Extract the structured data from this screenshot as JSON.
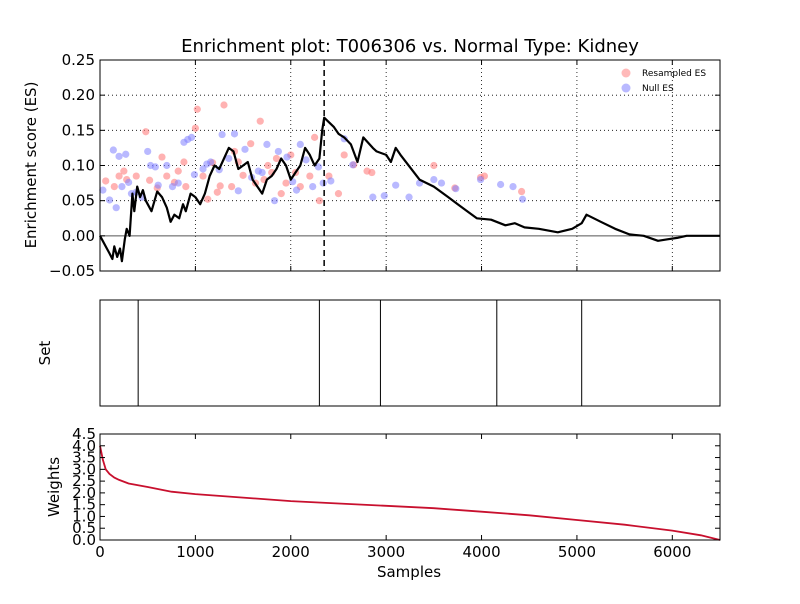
{
  "chart_data": [
    {
      "type": "scatter",
      "title": "Enrichment plot: T006306 vs. Normal Type: Kidney",
      "xlabel": "",
      "ylabel": "Enrichment score (ES)",
      "xlim": [
        0,
        6500
      ],
      "ylim": [
        -0.05,
        0.25
      ],
      "yticks": [
        "0.25",
        "0.20",
        "0.15",
        "0.10",
        "0.05",
        "0.00",
        "−0.05"
      ],
      "ytick_values": [
        0.25,
        0.2,
        0.15,
        0.1,
        0.05,
        0.0,
        -0.05
      ],
      "xtick_values": [
        1000,
        2000,
        3000,
        4000,
        5000,
        6000
      ],
      "grid": true,
      "legend_position": "top-right",
      "legend": [
        "Resampled ES",
        "Null ES"
      ],
      "colors": {
        "resampled": "#ff7f7f",
        "null": "#7f7fff",
        "es_line": "#000000",
        "max_es_marker": "#000000"
      },
      "max_es_x": 2350,
      "series": [
        {
          "name": "Resampled ES",
          "points": [
            [
              60,
              0.078
            ],
            [
              150,
              0.07
            ],
            [
              200,
              0.085
            ],
            [
              250,
              0.092
            ],
            [
              280,
              0.08
            ],
            [
              380,
              0.085
            ],
            [
              480,
              0.148
            ],
            [
              520,
              0.079
            ],
            [
              600,
              0.068
            ],
            [
              650,
              0.112
            ],
            [
              700,
              0.085
            ],
            [
              780,
              0.076
            ],
            [
              820,
              0.092
            ],
            [
              880,
              0.105
            ],
            [
              900,
              0.07
            ],
            [
              1000,
              0.153
            ],
            [
              1020,
              0.18
            ],
            [
              1080,
              0.085
            ],
            [
              1130,
              0.052
            ],
            [
              1180,
              0.104
            ],
            [
              1230,
              0.062
            ],
            [
              1260,
              0.071
            ],
            [
              1300,
              0.186
            ],
            [
              1380,
              0.07
            ],
            [
              1410,
              0.12
            ],
            [
              1450,
              0.105
            ],
            [
              1500,
              0.086
            ],
            [
              1580,
              0.131
            ],
            [
              1630,
              0.075
            ],
            [
              1680,
              0.163
            ],
            [
              1720,
              0.08
            ],
            [
              1760,
              0.1
            ],
            [
              1800,
              0.09
            ],
            [
              1850,
              0.11
            ],
            [
              1900,
              0.06
            ],
            [
              1950,
              0.075
            ],
            [
              2000,
              0.115
            ],
            [
              2050,
              0.09
            ],
            [
              2100,
              0.07
            ],
            [
              2200,
              0.085
            ],
            [
              2250,
              0.14
            ],
            [
              2300,
              0.05
            ],
            [
              2400,
              0.085
            ],
            [
              2500,
              0.06
            ],
            [
              2560,
              0.115
            ],
            [
              2660,
              0.101
            ],
            [
              2800,
              0.092
            ],
            [
              2850,
              0.09
            ],
            [
              3500,
              0.1
            ],
            [
              3720,
              0.068
            ],
            [
              3990,
              0.083
            ],
            [
              4030,
              0.085
            ],
            [
              4420,
              0.063
            ]
          ]
        },
        {
          "name": "Null ES",
          "points": [
            [
              30,
              0.065
            ],
            [
              100,
              0.051
            ],
            [
              140,
              0.122
            ],
            [
              170,
              0.04
            ],
            [
              200,
              0.113
            ],
            [
              230,
              0.07
            ],
            [
              270,
              0.116
            ],
            [
              300,
              0.076
            ],
            [
              330,
              0.06
            ],
            [
              380,
              0.062
            ],
            [
              440,
              0.055
            ],
            [
              500,
              0.12
            ],
            [
              530,
              0.1
            ],
            [
              580,
              0.098
            ],
            [
              610,
              0.072
            ],
            [
              700,
              0.1
            ],
            [
              760,
              0.07
            ],
            [
              820,
              0.075
            ],
            [
              880,
              0.133
            ],
            [
              920,
              0.137
            ],
            [
              960,
              0.14
            ],
            [
              990,
              0.087
            ],
            [
              1080,
              0.095
            ],
            [
              1120,
              0.102
            ],
            [
              1160,
              0.105
            ],
            [
              1250,
              0.094
            ],
            [
              1280,
              0.144
            ],
            [
              1350,
              0.11
            ],
            [
              1410,
              0.145
            ],
            [
              1450,
              0.064
            ],
            [
              1520,
              0.123
            ],
            [
              1590,
              0.083
            ],
            [
              1660,
              0.092
            ],
            [
              1700,
              0.09
            ],
            [
              1750,
              0.13
            ],
            [
              1830,
              0.05
            ],
            [
              1870,
              0.12
            ],
            [
              1960,
              0.112
            ],
            [
              2020,
              0.077
            ],
            [
              2060,
              0.065
            ],
            [
              2100,
              0.13
            ],
            [
              2160,
              0.108
            ],
            [
              2230,
              0.07
            ],
            [
              2290,
              0.098
            ],
            [
              2340,
              0.075
            ],
            [
              2420,
              0.078
            ],
            [
              2560,
              0.138
            ],
            [
              2650,
              0.101
            ],
            [
              2860,
              0.055
            ],
            [
              2980,
              0.057
            ],
            [
              3100,
              0.072
            ],
            [
              3240,
              0.055
            ],
            [
              3350,
              0.075
            ],
            [
              3500,
              0.08
            ],
            [
              3580,
              0.075
            ],
            [
              3730,
              0.067
            ],
            [
              3990,
              0.08
            ],
            [
              4200,
              0.073
            ],
            [
              4330,
              0.07
            ],
            [
              4430,
              0.052
            ]
          ]
        },
        {
          "name": "",
          "type": "line",
          "points": [
            [
              0,
              0.0
            ],
            [
              60,
              -0.015
            ],
            [
              100,
              -0.025
            ],
            [
              130,
              -0.033
            ],
            [
              150,
              -0.015
            ],
            [
              180,
              -0.03
            ],
            [
              210,
              -0.018
            ],
            [
              230,
              -0.036
            ],
            [
              260,
              -0.005
            ],
            [
              280,
              0.01
            ],
            [
              310,
              0.0
            ],
            [
              340,
              0.06
            ],
            [
              360,
              0.035
            ],
            [
              390,
              0.07
            ],
            [
              420,
              0.055
            ],
            [
              450,
              0.065
            ],
            [
              480,
              0.05
            ],
            [
              540,
              0.035
            ],
            [
              600,
              0.063
            ],
            [
              650,
              0.055
            ],
            [
              700,
              0.04
            ],
            [
              740,
              0.02
            ],
            [
              780,
              0.03
            ],
            [
              830,
              0.025
            ],
            [
              870,
              0.045
            ],
            [
              900,
              0.035
            ],
            [
              950,
              0.06
            ],
            [
              1000,
              0.055
            ],
            [
              1050,
              0.045
            ],
            [
              1100,
              0.06
            ],
            [
              1150,
              0.085
            ],
            [
              1200,
              0.1
            ],
            [
              1250,
              0.095
            ],
            [
              1300,
              0.11
            ],
            [
              1350,
              0.125
            ],
            [
              1400,
              0.12
            ],
            [
              1450,
              0.095
            ],
            [
              1500,
              0.1
            ],
            [
              1550,
              0.105
            ],
            [
              1600,
              0.08
            ],
            [
              1650,
              0.07
            ],
            [
              1700,
              0.06
            ],
            [
              1750,
              0.08
            ],
            [
              1800,
              0.085
            ],
            [
              1850,
              0.095
            ],
            [
              1900,
              0.11
            ],
            [
              1950,
              0.1
            ],
            [
              2000,
              0.08
            ],
            [
              2050,
              0.09
            ],
            [
              2100,
              0.1
            ],
            [
              2150,
              0.125
            ],
            [
              2200,
              0.115
            ],
            [
              2250,
              0.1
            ],
            [
              2300,
              0.11
            ],
            [
              2330,
              0.15
            ],
            [
              2350,
              0.168
            ],
            [
              2450,
              0.155
            ],
            [
              2500,
              0.145
            ],
            [
              2560,
              0.14
            ],
            [
              2630,
              0.13
            ],
            [
              2700,
              0.105
            ],
            [
              2760,
              0.14
            ],
            [
              2860,
              0.125
            ],
            [
              2900,
              0.12
            ],
            [
              3000,
              0.115
            ],
            [
              3050,
              0.105
            ],
            [
              3100,
              0.125
            ],
            [
              3150,
              0.115
            ],
            [
              3350,
              0.08
            ],
            [
              3500,
              0.07
            ],
            [
              3650,
              0.055
            ],
            [
              3750,
              0.045
            ],
            [
              3850,
              0.035
            ],
            [
              3950,
              0.025
            ],
            [
              4100,
              0.023
            ],
            [
              4250,
              0.015
            ],
            [
              4350,
              0.018
            ],
            [
              4450,
              0.012
            ],
            [
              4600,
              0.01
            ],
            [
              4800,
              0.005
            ],
            [
              4950,
              0.01
            ],
            [
              5050,
              0.018
            ],
            [
              5100,
              0.03
            ],
            [
              5250,
              0.02
            ],
            [
              5400,
              0.01
            ],
            [
              5550,
              0.002
            ],
            [
              5700,
              0.0
            ],
            [
              5850,
              -0.007
            ],
            [
              5950,
              -0.005
            ],
            [
              6050,
              -0.003
            ],
            [
              6150,
              0.0
            ],
            [
              6300,
              0.0
            ],
            [
              6500,
              0.0
            ]
          ]
        }
      ]
    },
    {
      "type": "line",
      "title": "",
      "ylabel": "Set",
      "xlim": [
        0,
        6500
      ],
      "positions": [
        400,
        2300,
        2940,
        4160,
        5050
      ]
    },
    {
      "type": "area",
      "title": "",
      "xlabel": "Samples",
      "ylabel": "Weights",
      "xlim": [
        0,
        6500
      ],
      "ylim": [
        0,
        4.5
      ],
      "yticks": [
        "4.5",
        "4.0",
        "3.5",
        "3.0",
        "2.5",
        "2.0",
        "1.5",
        "1.0",
        "0.5",
        "0.0"
      ],
      "ytick_values": [
        4.5,
        4.0,
        3.5,
        3.0,
        2.5,
        2.0,
        1.5,
        1.0,
        0.5,
        0.0
      ],
      "xticks": [
        "0",
        "1000",
        "2000",
        "3000",
        "4000",
        "5000",
        "6000"
      ],
      "xtick_values": [
        0,
        1000,
        2000,
        3000,
        4000,
        5000,
        6000
      ],
      "colors": {
        "line": "#c8102e"
      },
      "points": [
        [
          0,
          4.0
        ],
        [
          30,
          3.4
        ],
        [
          60,
          3.0
        ],
        [
          100,
          2.8
        ],
        [
          150,
          2.65
        ],
        [
          200,
          2.55
        ],
        [
          300,
          2.4
        ],
        [
          500,
          2.25
        ],
        [
          750,
          2.05
        ],
        [
          1000,
          1.95
        ],
        [
          1500,
          1.8
        ],
        [
          2000,
          1.65
        ],
        [
          2500,
          1.55
        ],
        [
          3000,
          1.45
        ],
        [
          3500,
          1.35
        ],
        [
          4000,
          1.2
        ],
        [
          4500,
          1.05
        ],
        [
          5000,
          0.85
        ],
        [
          5500,
          0.65
        ],
        [
          6000,
          0.4
        ],
        [
          6300,
          0.2
        ],
        [
          6500,
          0.0
        ]
      ]
    }
  ]
}
